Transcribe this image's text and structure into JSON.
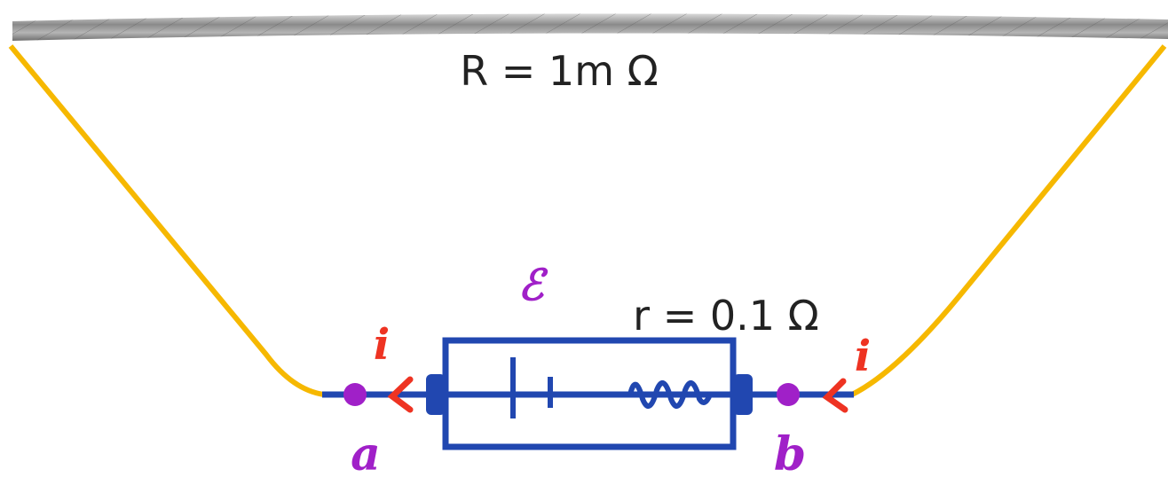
{
  "cable": {
    "label": "R = 1m Ω"
  },
  "battery": {
    "emf_symbol": "ℰ",
    "label": "r = 0.1 Ω"
  },
  "currents": [
    "i",
    "i"
  ],
  "terminals": [
    "a",
    "b"
  ]
}
